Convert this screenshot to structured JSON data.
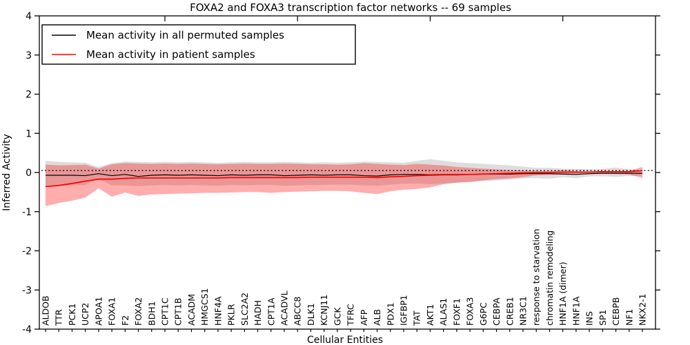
{
  "figure": {
    "background": "#ffffff"
  },
  "legend": {
    "entries": [
      {
        "label": "Mean activity in all permuted samples",
        "color": "#000000"
      },
      {
        "label": "Mean activity in patient samples",
        "color": "#ff0000"
      }
    ]
  },
  "chart_data": {
    "type": "line",
    "title": "FOXA2 and FOXA3 transcription factor networks -- 69 samples",
    "xlabel": "Cellular Entities",
    "ylabel": "Inferred Activity",
    "ylim": [
      -4,
      4
    ],
    "yticks": [
      -4,
      -3,
      -2,
      -1,
      0,
      1,
      2,
      3,
      4
    ],
    "grid": false,
    "legend_position": "upper left",
    "categories": [
      "ALDOB",
      "TTR",
      "PCK1",
      "UCP2",
      "APOA1",
      "FOXA1",
      "F2",
      "FOXA2",
      "BDH1",
      "CPT1C",
      "CPT1B",
      "ACADM",
      "HMGCS1",
      "HNF4A",
      "PKLR",
      "SLC2A2",
      "HADH",
      "CPT1A",
      "ACADVL",
      "ABCC8",
      "DLK1",
      "KCNJ11",
      "GCK",
      "TFRC",
      "AFP",
      "ALB",
      "PDX1",
      "IGFBP1",
      "TAT",
      "AKT1",
      "ALAS1",
      "FOXF1",
      "FOXA3",
      "G6PC",
      "CEBPA",
      "CREB1",
      "NR3C1",
      "response to starvation",
      "chromatin remodeling",
      "HNF1A (dimer)",
      "HNF1A",
      "INS",
      "SP1",
      "CEBPB",
      "NF1",
      "NKX2-1"
    ],
    "series": [
      {
        "name": "Mean activity in all permuted samples",
        "color": "#000000",
        "line_width": 1.2,
        "values": [
          -0.07,
          -0.07,
          -0.07,
          -0.08,
          -0.03,
          -0.08,
          -0.05,
          -0.1,
          -0.07,
          -0.06,
          -0.07,
          -0.06,
          -0.07,
          -0.08,
          -0.06,
          -0.07,
          -0.06,
          -0.06,
          -0.08,
          -0.07,
          -0.06,
          -0.07,
          -0.06,
          -0.06,
          -0.08,
          -0.09,
          -0.06,
          -0.05,
          -0.05,
          -0.06,
          -0.05,
          -0.05,
          -0.05,
          -0.04,
          -0.04,
          -0.04,
          -0.03,
          -0.03,
          -0.03,
          -0.04,
          -0.05,
          -0.03,
          -0.02,
          -0.02,
          -0.02,
          -0.02
        ]
      },
      {
        "name": "Mean activity in patient samples",
        "color": "#ff0000",
        "line_width": 1.7,
        "values": [
          -0.36,
          -0.33,
          -0.28,
          -0.22,
          -0.17,
          -0.17,
          -0.15,
          -0.14,
          -0.14,
          -0.14,
          -0.14,
          -0.14,
          -0.14,
          -0.14,
          -0.13,
          -0.13,
          -0.13,
          -0.13,
          -0.13,
          -0.13,
          -0.12,
          -0.12,
          -0.12,
          -0.12,
          -0.12,
          -0.13,
          -0.11,
          -0.1,
          -0.08,
          -0.07,
          -0.06,
          -0.06,
          -0.05,
          -0.04,
          -0.03,
          -0.02,
          -0.01,
          0.0,
          0.0,
          0.01,
          0.01,
          0.01,
          0.02,
          0.02,
          0.02,
          0.05
        ]
      }
    ],
    "bands": [
      {
        "name": "permuted-std-band",
        "color": "#000000",
        "opacity": 0.135,
        "top": [
          0.3,
          0.27,
          0.26,
          0.25,
          0.14,
          0.24,
          0.28,
          0.27,
          0.26,
          0.27,
          0.26,
          0.27,
          0.26,
          0.25,
          0.26,
          0.27,
          0.26,
          0.26,
          0.27,
          0.26,
          0.25,
          0.26,
          0.25,
          0.26,
          0.28,
          0.27,
          0.26,
          0.25,
          0.3,
          0.34,
          0.3,
          0.26,
          0.24,
          0.22,
          0.2,
          0.18,
          0.15,
          0.12,
          0.12,
          0.1,
          0.09,
          0.08,
          0.09,
          0.13,
          0.08,
          0.05
        ],
        "bottom": [
          -0.36,
          -0.34,
          -0.33,
          -0.32,
          -0.16,
          -0.33,
          -0.33,
          -0.35,
          -0.33,
          -0.32,
          -0.33,
          -0.32,
          -0.33,
          -0.34,
          -0.32,
          -0.33,
          -0.32,
          -0.32,
          -0.34,
          -0.33,
          -0.32,
          -0.32,
          -0.31,
          -0.31,
          -0.33,
          -0.34,
          -0.31,
          -0.29,
          -0.28,
          -0.3,
          -0.28,
          -0.26,
          -0.24,
          -0.22,
          -0.2,
          -0.18,
          -0.15,
          -0.14,
          -0.16,
          -0.12,
          -0.14,
          -0.1,
          -0.1,
          -0.11,
          -0.09,
          -0.08
        ]
      },
      {
        "name": "patient-std-band",
        "color": "#ff0000",
        "opacity": 0.32,
        "top": [
          0.2,
          0.18,
          0.19,
          0.2,
          0.1,
          0.21,
          0.24,
          0.23,
          0.22,
          0.23,
          0.22,
          0.23,
          0.22,
          0.21,
          0.22,
          0.23,
          0.22,
          0.22,
          0.23,
          0.22,
          0.21,
          0.21,
          0.2,
          0.21,
          0.24,
          0.22,
          0.2,
          0.19,
          0.22,
          0.2,
          0.18,
          0.14,
          0.12,
          0.1,
          0.08,
          0.06,
          0.05,
          0.04,
          0.04,
          0.06,
          0.03,
          0.02,
          0.02,
          0.03,
          0.04,
          0.14
        ],
        "bottom": [
          -0.86,
          -0.78,
          -0.72,
          -0.64,
          -0.4,
          -0.62,
          -0.51,
          -0.6,
          -0.56,
          -0.55,
          -0.54,
          -0.53,
          -0.52,
          -0.52,
          -0.51,
          -0.5,
          -0.5,
          -0.52,
          -0.5,
          -0.49,
          -0.48,
          -0.47,
          -0.47,
          -0.48,
          -0.52,
          -0.55,
          -0.48,
          -0.44,
          -0.42,
          -0.38,
          -0.3,
          -0.26,
          -0.24,
          -0.2,
          -0.17,
          -0.15,
          -0.12,
          -0.07,
          -0.06,
          -0.05,
          -0.04,
          -0.04,
          -0.03,
          -0.04,
          -0.05,
          -0.14
        ]
      }
    ],
    "reference_line": {
      "style": "dotted",
      "color": "#000000",
      "value": 0.05
    },
    "top_tick_indices": [
      9,
      19,
      29,
      39
    ]
  }
}
